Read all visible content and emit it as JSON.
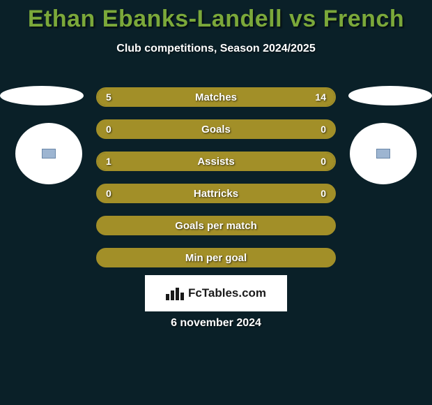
{
  "background_color": "#0a2028",
  "accent_color": "#a28f28",
  "title_color": "#7ba83a",
  "text_color": "#ffffff",
  "title": "Ethan Ebanks-Landell vs French",
  "subtitle": "Club competitions, Season 2024/2025",
  "date": "6 november 2024",
  "brand": "FcTables.com",
  "bars": [
    {
      "label": "Matches",
      "left_val": "5",
      "right_val": "14",
      "left_pct": 26,
      "right_pct": 74
    },
    {
      "label": "Goals",
      "left_val": "0",
      "right_val": "0",
      "left_pct": 0,
      "right_pct": 0
    },
    {
      "label": "Assists",
      "left_val": "1",
      "right_val": "0",
      "left_pct": 100,
      "right_pct": 0
    },
    {
      "label": "Hattricks",
      "left_val": "0",
      "right_val": "0",
      "left_pct": 0,
      "right_pct": 0
    },
    {
      "label": "Goals per match",
      "left_val": "",
      "right_val": "",
      "left_pct": 100,
      "right_pct": 100
    },
    {
      "label": "Min per goal",
      "left_val": "",
      "right_val": "",
      "left_pct": 100,
      "right_pct": 100
    }
  ],
  "bar_style": {
    "height": 28,
    "gap": 18,
    "radius": 14,
    "fill_color": "#a28f28",
    "track_color": "#0a2028",
    "label_fontsize": 15,
    "value_fontsize": 14
  }
}
